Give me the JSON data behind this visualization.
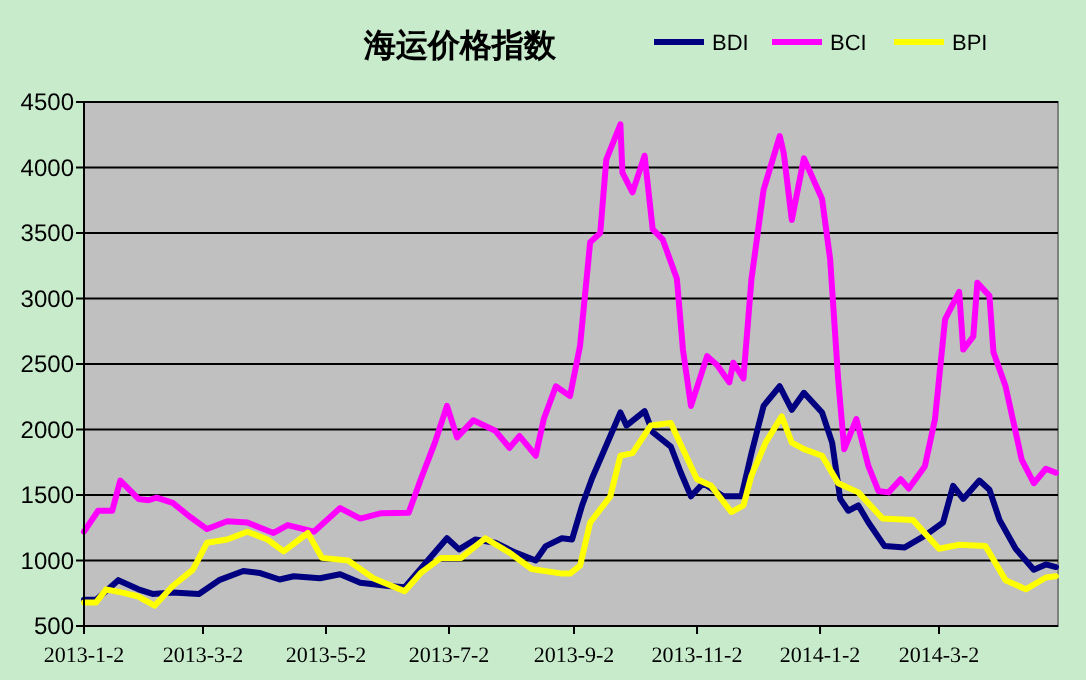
{
  "chart_data": {
    "type": "line",
    "title": "海运价格指数",
    "legend": "top",
    "grid": "y",
    "marker": "none",
    "line_style": "solid",
    "xlim": [
      "2013-01-02",
      "2014-04-30"
    ],
    "xticks": [
      {
        "value": "2013-01-02",
        "label": "2013-1-2"
      },
      {
        "value": "2013-03-02",
        "label": "2013-3-2"
      },
      {
        "value": "2013-05-02",
        "label": "2013-5-2"
      },
      {
        "value": "2013-07-02",
        "label": "2013-7-2"
      },
      {
        "value": "2013-09-02",
        "label": "2013-9-2"
      },
      {
        "value": "2013-11-02",
        "label": "2013-11-2"
      },
      {
        "value": "2014-01-02",
        "label": "2014-1-2"
      },
      {
        "value": "2014-03-02",
        "label": "2014-3-2"
      }
    ],
    "ylim": [
      500,
      4500
    ],
    "yticks": [
      500,
      1000,
      1500,
      2000,
      2500,
      3000,
      3500,
      4000,
      4500
    ],
    "series": [
      {
        "name": "BDI",
        "color": "#000080",
        "x": [
          "2013-01-02",
          "2013-01-08",
          "2013-01-19",
          "2013-01-29",
          "2013-02-05",
          "2013-02-15",
          "2013-02-28",
          "2013-03-10",
          "2013-03-22",
          "2013-03-30",
          "2013-04-09",
          "2013-04-16",
          "2013-04-29",
          "2013-05-09",
          "2013-05-19",
          "2013-06-02",
          "2013-06-10",
          "2013-06-22",
          "2013-07-01",
          "2013-07-07",
          "2013-07-15",
          "2013-07-25",
          "2013-08-04",
          "2013-08-14",
          "2013-08-19",
          "2013-08-27",
          "2013-09-01",
          "2013-09-06",
          "2013-09-11",
          "2013-09-20",
          "2013-09-25",
          "2013-09-28",
          "2013-10-07",
          "2013-10-11",
          "2013-10-20",
          "2013-10-25",
          "2013-10-30",
          "2013-11-05",
          "2013-11-15",
          "2013-11-24",
          "2013-11-29",
          "2013-12-05",
          "2013-12-13",
          "2013-12-19",
          "2013-12-25",
          "2014-01-03",
          "2014-01-08",
          "2014-01-12",
          "2014-01-16",
          "2014-01-21",
          "2014-01-26",
          "2014-02-03",
          "2014-02-13",
          "2014-02-23",
          "2014-03-04",
          "2014-03-09",
          "2014-03-14",
          "2014-03-22",
          "2014-03-27",
          "2014-04-01",
          "2014-04-09",
          "2014-04-18",
          "2014-04-24",
          "2014-04-29"
        ],
        "values": [
          700,
          700,
          850,
          780,
          745,
          755,
          745,
          850,
          920,
          905,
          855,
          880,
          865,
          895,
          830,
          805,
          795,
          1010,
          1170,
          1085,
          1160,
          1135,
          1060,
          1000,
          1110,
          1170,
          1160,
          1420,
          1630,
          1950,
          2130,
          2030,
          2140,
          1980,
          1870,
          1670,
          1490,
          1590,
          1490,
          1490,
          1820,
          2180,
          2330,
          2150,
          2280,
          2130,
          1900,
          1470,
          1380,
          1420,
          1290,
          1110,
          1100,
          1190,
          1290,
          1570,
          1470,
          1610,
          1540,
          1310,
          1090,
          930,
          970,
          950
        ]
      },
      {
        "name": "BCI",
        "color": "#ff00ff",
        "x": [
          "2013-01-02",
          "2013-01-09",
          "2013-01-16",
          "2013-01-20",
          "2013-01-29",
          "2013-02-03",
          "2013-02-07",
          "2013-02-15",
          "2013-02-23",
          "2013-03-04",
          "2013-03-14",
          "2013-03-24",
          "2013-04-06",
          "2013-04-13",
          "2013-04-26",
          "2013-05-09",
          "2013-05-19",
          "2013-05-29",
          "2013-06-12",
          "2013-06-18",
          "2013-06-25",
          "2013-07-01",
          "2013-07-06",
          "2013-07-14",
          "2013-07-25",
          "2013-08-01",
          "2013-08-06",
          "2013-08-14",
          "2013-08-18",
          "2013-08-24",
          "2013-08-31",
          "2013-09-05",
          "2013-09-10",
          "2013-09-15",
          "2013-09-18",
          "2013-09-25",
          "2013-09-26",
          "2013-10-01",
          "2013-10-07",
          "2013-10-11",
          "2013-10-16",
          "2013-10-23",
          "2013-10-26",
          "2013-10-30",
          "2013-11-07",
          "2013-11-12",
          "2013-11-18",
          "2013-11-20",
          "2013-11-25",
          "2013-11-29",
          "2013-12-05",
          "2013-12-13",
          "2013-12-15",
          "2013-12-19",
          "2013-12-25",
          "2014-01-03",
          "2014-01-07",
          "2014-01-11",
          "2014-01-14",
          "2014-01-20",
          "2014-01-26",
          "2014-01-31",
          "2014-02-05",
          "2014-02-11",
          "2014-02-15",
          "2014-02-23",
          "2014-02-28",
          "2014-03-05",
          "2014-03-12",
          "2014-03-14",
          "2014-03-19",
          "2014-03-21",
          "2014-03-27",
          "2014-03-29",
          "2014-04-04",
          "2014-04-12",
          "2014-04-18",
          "2014-04-24",
          "2014-04-29"
        ],
        "values": [
          1220,
          1380,
          1380,
          1610,
          1470,
          1460,
          1480,
          1440,
          1340,
          1240,
          1300,
          1290,
          1210,
          1270,
          1220,
          1400,
          1320,
          1360,
          1365,
          1620,
          1900,
          2180,
          1940,
          2070,
          1990,
          1860,
          1950,
          1800,
          2080,
          2330,
          2255,
          2640,
          3430,
          3500,
          4060,
          4330,
          3960,
          3810,
          4090,
          3530,
          3450,
          3150,
          2610,
          2180,
          2560,
          2490,
          2360,
          2510,
          2390,
          3150,
          3830,
          4240,
          4110,
          3600,
          4070,
          3760,
          3300,
          2380,
          1850,
          2080,
          1720,
          1530,
          1520,
          1620,
          1550,
          1720,
          2080,
          2840,
          3050,
          2610,
          2710,
          3120,
          3020,
          2590,
          2330,
          1770,
          1590,
          1700,
          1670
        ]
      },
      {
        "name": "BPI",
        "color": "#ffff00",
        "x": [
          "2013-01-02",
          "2013-01-08",
          "2013-01-13",
          "2013-01-21",
          "2013-01-29",
          "2013-02-06",
          "2013-02-15",
          "2013-02-25",
          "2013-03-04",
          "2013-03-14",
          "2013-03-24",
          "2013-04-03",
          "2013-04-11",
          "2013-04-23",
          "2013-04-30",
          "2013-05-13",
          "2013-05-26",
          "2013-06-10",
          "2013-06-18",
          "2013-06-28",
          "2013-07-08",
          "2013-07-20",
          "2013-08-01",
          "2013-08-12",
          "2013-08-27",
          "2013-08-31",
          "2013-09-05",
          "2013-09-10",
          "2013-09-20",
          "2013-09-25",
          "2013-10-01",
          "2013-10-10",
          "2013-10-20",
          "2013-10-26",
          "2013-11-02",
          "2013-11-09",
          "2013-11-19",
          "2013-11-25",
          "2013-11-29",
          "2013-12-06",
          "2013-12-14",
          "2013-12-19",
          "2013-12-25",
          "2014-01-03",
          "2014-01-11",
          "2014-01-21",
          "2014-02-02",
          "2014-02-17",
          "2014-03-02",
          "2014-03-12",
          "2014-03-25",
          "2014-04-04",
          "2014-04-14",
          "2014-04-24",
          "2014-04-29"
        ],
        "values": [
          680,
          680,
          780,
          755,
          725,
          655,
          805,
          930,
          1135,
          1160,
          1220,
          1160,
          1070,
          1210,
          1020,
          1000,
          860,
          765,
          905,
          1020,
          1020,
          1170,
          1060,
          935,
          900,
          900,
          960,
          1290,
          1490,
          1800,
          1820,
          2030,
          2050,
          1850,
          1620,
          1570,
          1370,
          1420,
          1650,
          1900,
          2100,
          1900,
          1850,
          1800,
          1590,
          1520,
          1320,
          1310,
          1090,
          1120,
          1110,
          850,
          780,
          870,
          880
        ]
      }
    ]
  }
}
